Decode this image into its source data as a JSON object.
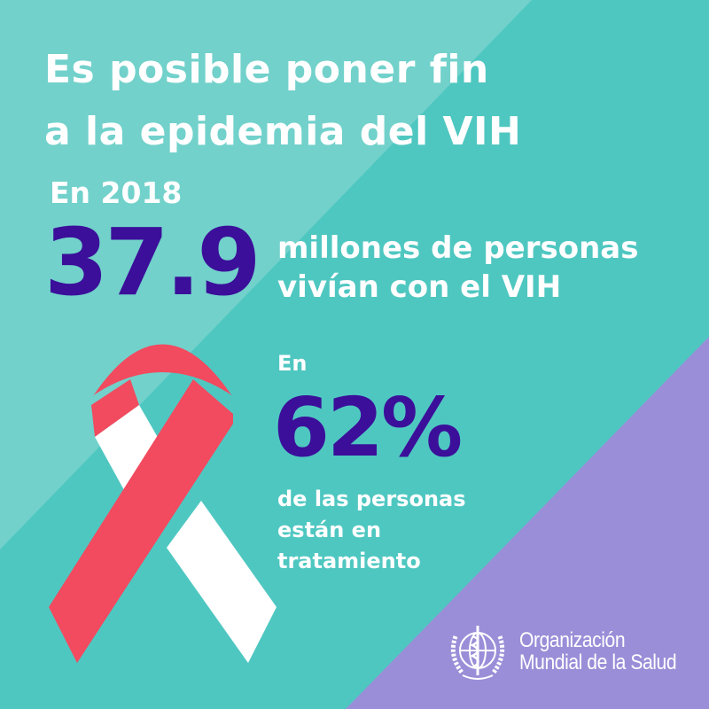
{
  "title_lines": [
    "Es posible poner fin",
    "a la epidemia del VIH"
  ],
  "year_label": "En 2018",
  "stat1": {
    "value": "37.9",
    "label_lines": [
      "millones de personas",
      "vivían con el VIH"
    ]
  },
  "stat2": {
    "prefix": "En",
    "value": "62%",
    "label_lines": [
      "de las personas",
      "están en",
      "tratamiento"
    ]
  },
  "organization": {
    "name_lines": [
      "Organización",
      "Mundial de la Salud"
    ],
    "icon": "who-emblem-icon"
  },
  "colors": {
    "teal": "#4fc7c1",
    "teal_light": "#72d1cb",
    "purple": "#9a8ed8",
    "number": "#3b0f9a",
    "ribbon_red": "#f24a5f"
  }
}
